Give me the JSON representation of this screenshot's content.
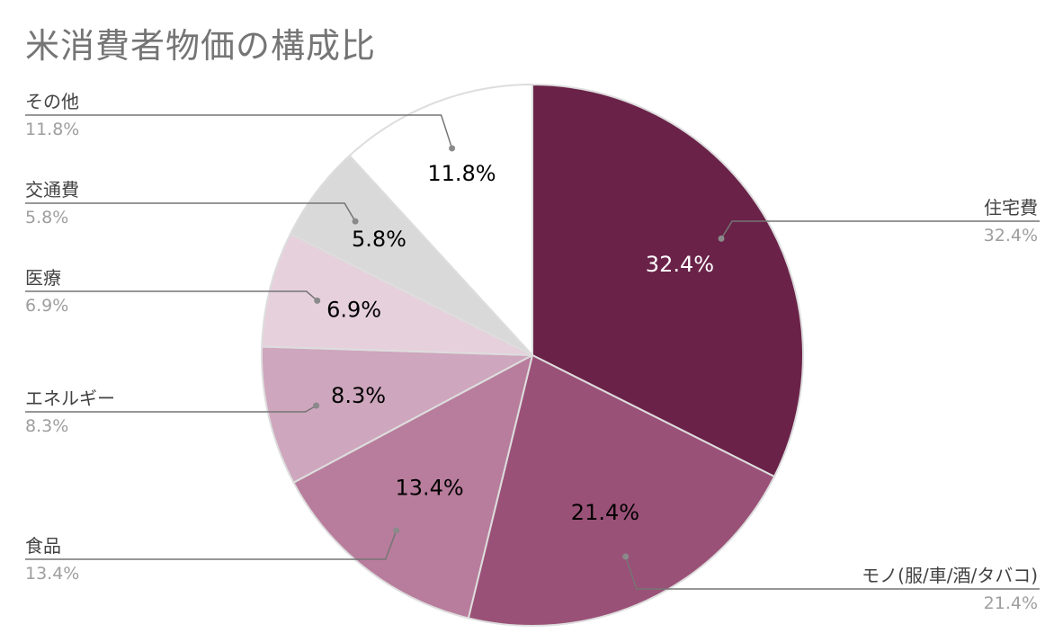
{
  "chart_data": {
    "type": "pie",
    "title": "米消費者物価の構成比",
    "slices": [
      {
        "label": "住宅費",
        "value": 32.4,
        "value_label": "32.4%",
        "color": "#6a2248"
      },
      {
        "label": "モノ(服/車/酒/タバコ)",
        "value": 21.4,
        "value_label": "21.4%",
        "color": "#9a5177"
      },
      {
        "label": "食品",
        "value": 13.4,
        "value_label": "13.4%",
        "color": "#b87d9c"
      },
      {
        "label": "エネルギー",
        "value": 8.3,
        "value_label": "8.3%",
        "color": "#cea6bd"
      },
      {
        "label": "医療",
        "value": 6.9,
        "value_label": "6.9%",
        "color": "#e6d0dc"
      },
      {
        "label": "交通費",
        "value": 5.8,
        "value_label": "5.8%",
        "color": "#d9d9d9"
      },
      {
        "label": "その他",
        "value": 11.8,
        "value_label": "11.8%",
        "color": "#ffffff"
      }
    ],
    "start_angle_deg": 0,
    "direction": "clockwise",
    "legend": "callout-labels"
  },
  "colors": {
    "title": "#757575",
    "label_name": "#424242",
    "label_value": "#9e9e9e",
    "leader_line": "#757575",
    "slice_border": "#dddddd",
    "inner_label_dark": "#000000",
    "inner_label_light": "#ffffff"
  }
}
